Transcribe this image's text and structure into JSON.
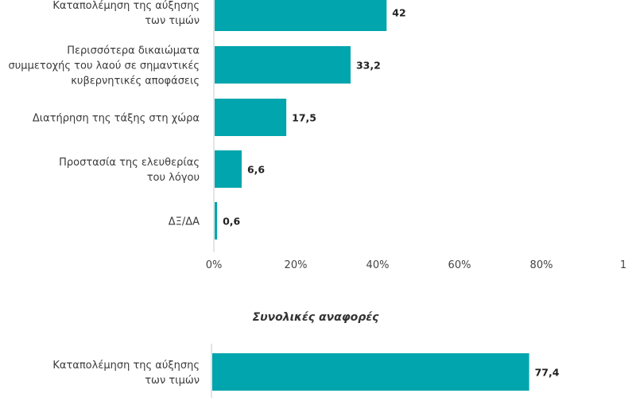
{
  "colors": {
    "bar": "#00a5ad",
    "axis": "#c8c8c8",
    "text": "#3a3a3a"
  },
  "chart_data": [
    {
      "type": "bar",
      "orientation": "horizontal",
      "title": "",
      "categories": [
        [
          "Καταπολέμηση της αύξησης",
          "των τιμών"
        ],
        [
          "Περισσότερα δικαιώματα",
          "συμμετοχής του λαού σε σημαντικές",
          "κυβερνητικές αποφάσεις"
        ],
        [
          "Διατήρηση της τάξης στη χώρα"
        ],
        [
          "Προστασία της ελευθερίας",
          "του λόγου"
        ],
        [
          "ΔΞ/ΔΑ"
        ]
      ],
      "values": [
        42,
        33.2,
        17.5,
        6.6,
        0.6
      ],
      "value_labels": [
        "42",
        "33,2",
        "17,5",
        "6,6",
        "0,6"
      ],
      "xlim": [
        0,
        100
      ],
      "x_ticks": [
        "0%",
        "20%",
        "40%",
        "60%",
        "80%",
        "1"
      ],
      "grid": false,
      "legend": "none"
    },
    {
      "type": "bar",
      "orientation": "horizontal",
      "title": "Συνολικές αναφορές",
      "categories": [
        [
          "Καταπολέμηση της αύξησης",
          "των τιμών"
        ]
      ],
      "values": [
        77.4
      ],
      "value_labels": [
        "77,4"
      ],
      "xlim": [
        0,
        100
      ],
      "grid": false,
      "legend": "none"
    }
  ]
}
